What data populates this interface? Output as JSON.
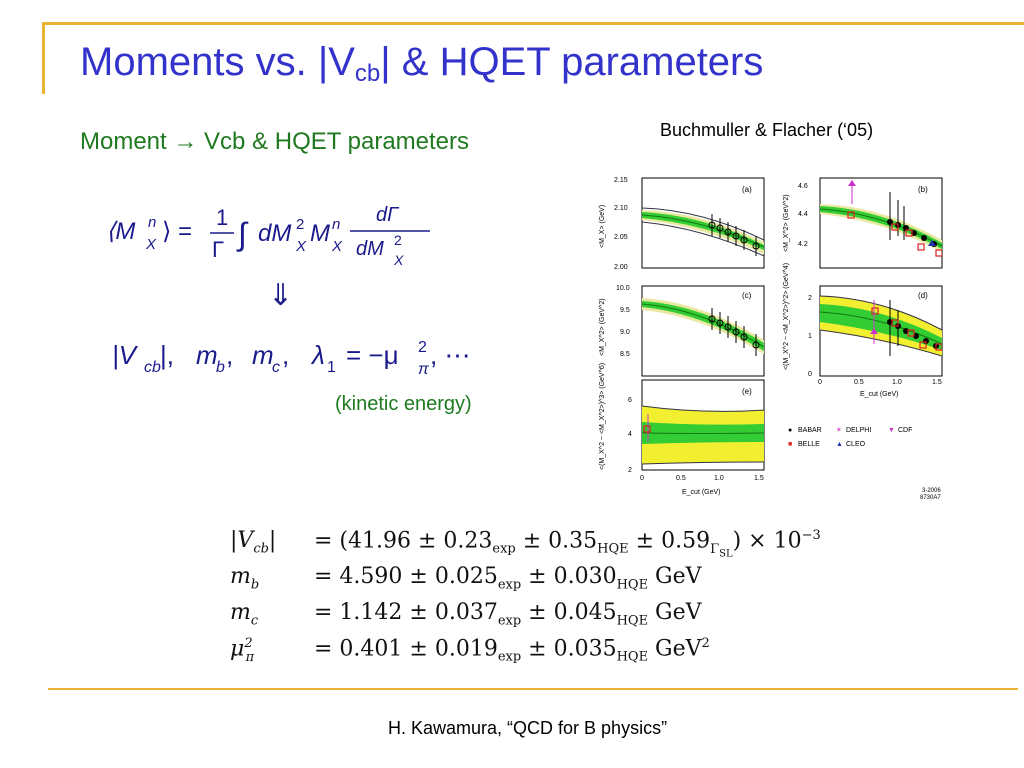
{
  "slide": {
    "title_main": "Moments vs. |V",
    "title_sub": "cb",
    "title_end": "| & HQET parameters",
    "subtitle": "Moment → Vcb & HQET parameters",
    "citation": "Buchmuller & Flacher (‘05)",
    "kinetic_note": "(kinetic energy)",
    "footer": "H. Kawamura, “QCD for B physics”"
  },
  "equations": {
    "moment_lhs": "⟨M",
    "moment_sup": "n",
    "moment_sub": "X",
    "moment_eq": "⟩ =",
    "frac_num": "1",
    "frac_den": "Γ",
    "integral": "∫",
    "integrand": "dM",
    "integrand_sup": "2",
    "integrand_sub": "X",
    "integrand_m": "M",
    "integrand_m_sup": "n",
    "integrand_m_sub": "X",
    "deriv_num": "dΓ",
    "deriv_den": "dM",
    "deriv_den_sup": "2",
    "deriv_den_sub": "X",
    "implies": "⇓",
    "params_vcb": "|V",
    "params_vcb_sub": "cb",
    "params_vcb_end": "|,",
    "params_mb": "m",
    "params_mb_sub": "b",
    "params_comma1": ",",
    "params_mc": "m",
    "params_mc_sub": "c",
    "params_comma2": ",",
    "params_lambda": "λ",
    "params_lambda_sub": "1",
    "params_eq": "= −μ",
    "params_mu_sup": "2",
    "params_mu_sub": "π",
    "params_dots": ", ⋯"
  },
  "results": [
    {
      "lhs": "|V",
      "lhs_sub": "cb",
      "lhs_end": "|",
      "val": "= (41.96 ± 0.23",
      "s1": "exp",
      "v2": " ± 0.35",
      "s2": "HQE",
      "v3": " ± 0.59",
      "s3": "Γ",
      "s3b": "SL",
      "tail": ") × 10",
      "tail_sup": "−3"
    },
    {
      "lhs": "m",
      "lhs_sub": "b",
      "val": "= 4.590 ± 0.025",
      "s1": "exp",
      "v2": " ± 0.030",
      "s2": "HQE",
      "tail": " GeV"
    },
    {
      "lhs": "m",
      "lhs_sub": "c",
      "val": "= 1.142 ± 0.037",
      "s1": "exp",
      "v2": " ± 0.045",
      "s2": "HQE",
      "tail": " GeV"
    },
    {
      "lhs": "μ",
      "lhs_sub": "π",
      "lhs_sup": "2",
      "val": "= 0.401 ± 0.019",
      "s1": "exp",
      "v2": " ± 0.035",
      "s2": "HQE",
      "tail": " GeV",
      "tail_sup": "2"
    }
  ],
  "figure": {
    "panels": [
      {
        "label": "(a)",
        "ylabel": "<M_X> (GeV)",
        "yticks": [
          "2.15",
          "2.10",
          "2.05",
          "2.00"
        ]
      },
      {
        "label": "(b)",
        "ylabel": "<M_X^2> (GeV^2)",
        "yticks": [
          "4.6",
          "4.4",
          "4.2"
        ]
      },
      {
        "label": "(c)",
        "ylabel": "<M_X^2> (GeV^2)",
        "yticks": [
          "10.0",
          "9.5",
          "9.0",
          "8.5"
        ]
      },
      {
        "label": "(d)",
        "ylabel": "<(M_X^2 − <M_X^2>)^2> (GeV^4)",
        "yticks": [
          "2",
          "1",
          "0"
        ],
        "xticks": [
          "0",
          "0.5",
          "1.0",
          "1.5"
        ],
        "xlabel": "E_cut (GeV)"
      },
      {
        "label": "(e)",
        "ylabel": "<(M_X^2 − <M_X^2>)^3> (GeV^6)",
        "yticks": [
          "6",
          "4",
          "2"
        ],
        "xticks": [
          "0",
          "0.5",
          "1.0",
          "1.5"
        ],
        "xlabel": "E_cut (GeV)"
      }
    ],
    "legend": [
      {
        "name": "BABAR",
        "symbol": "●",
        "color": "#000000"
      },
      {
        "name": "DELPHI",
        "symbol": "✶",
        "color": "#cc33cc"
      },
      {
        "name": "CDF",
        "symbol": "▼",
        "color": "#cc33cc"
      },
      {
        "name": "BELLE",
        "symbol": "■",
        "color": "#dd2222"
      },
      {
        "name": "CLEO",
        "symbol": "▲",
        "color": "#2233aa"
      }
    ],
    "corner_code_1": "3-2006",
    "corner_code_2": "8730A7"
  }
}
